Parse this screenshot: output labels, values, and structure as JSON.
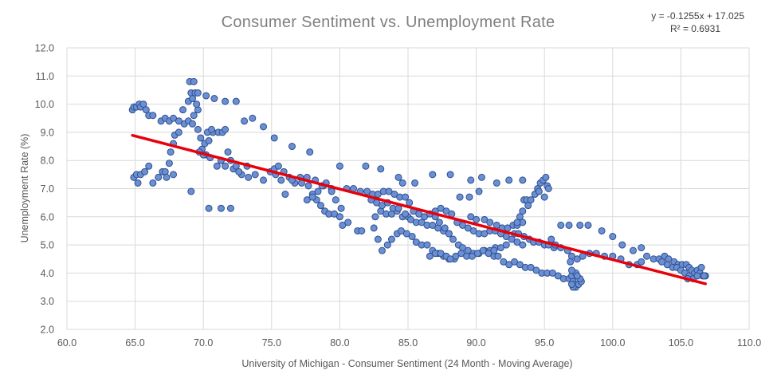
{
  "chart_data": {
    "type": "scatter",
    "title": "Consumer Sentiment vs. Unemployment Rate",
    "xlabel": "University of Michigan - Consumer Sentiment (24 Month - Moving Average)",
    "ylabel": "Unemployment Rate (%)",
    "xlim": [
      60,
      110
    ],
    "ylim": [
      2,
      12
    ],
    "x_ticks": [
      "60.0",
      "65.0",
      "70.0",
      "75.0",
      "80.0",
      "85.0",
      "90.0",
      "95.0",
      "100.0",
      "105.0",
      "110.0"
    ],
    "y_ticks": [
      "2.0",
      "3.0",
      "4.0",
      "5.0",
      "6.0",
      "7.0",
      "8.0",
      "9.0",
      "10.0",
      "11.0",
      "12.0"
    ],
    "grid": true,
    "legend": "none",
    "trendline": {
      "equation": "y = -0.1255x + 17.025",
      "r_squared": "R² = 0.6931",
      "slope": -0.1255,
      "intercept": 17.025,
      "x_range": [
        64.8,
        106.8
      ],
      "color": "#e8000b"
    },
    "marker_color": "#6a8fd3",
    "marker_edge_color": "#2f4f8f",
    "points": [
      [
        64.8,
        9.8
      ],
      [
        64.9,
        9.9
      ],
      [
        65.1,
        9.9
      ],
      [
        65.3,
        10.0
      ],
      [
        65.4,
        9.9
      ],
      [
        65.6,
        10.0
      ],
      [
        65.8,
        9.8
      ],
      [
        66.0,
        9.6
      ],
      [
        66.3,
        9.6
      ],
      [
        64.9,
        7.4
      ],
      [
        65.2,
        7.2
      ],
      [
        65.1,
        7.5
      ],
      [
        65.4,
        7.5
      ],
      [
        65.7,
        7.6
      ],
      [
        66.0,
        7.8
      ],
      [
        66.3,
        7.2
      ],
      [
        66.7,
        7.4
      ],
      [
        67.0,
        7.6
      ],
      [
        67.2,
        7.6
      ],
      [
        67.8,
        7.5
      ],
      [
        66.9,
        9.4
      ],
      [
        67.2,
        9.5
      ],
      [
        67.5,
        9.4
      ],
      [
        67.8,
        9.5
      ],
      [
        68.2,
        9.4
      ],
      [
        68.6,
        9.3
      ],
      [
        68.9,
        9.4
      ],
      [
        69.2,
        9.3
      ],
      [
        69.3,
        9.6
      ],
      [
        69.6,
        9.8
      ],
      [
        67.6,
        8.3
      ],
      [
        67.8,
        8.6
      ],
      [
        67.9,
        8.9
      ],
      [
        68.2,
        9.0
      ],
      [
        67.5,
        7.9
      ],
      [
        67.3,
        7.4
      ],
      [
        69.1,
        6.9
      ],
      [
        68.5,
        9.8
      ],
      [
        68.9,
        10.1
      ],
      [
        69.0,
        10.8
      ],
      [
        69.3,
        10.8
      ],
      [
        69.1,
        10.4
      ],
      [
        69.4,
        10.4
      ],
      [
        69.6,
        10.4
      ],
      [
        69.5,
        10.0
      ],
      [
        69.2,
        10.2
      ],
      [
        70.2,
        10.3
      ],
      [
        70.8,
        10.2
      ],
      [
        71.6,
        10.1
      ],
      [
        72.4,
        10.1
      ],
      [
        69.6,
        9.1
      ],
      [
        69.8,
        8.8
      ],
      [
        70.1,
        8.6
      ],
      [
        70.4,
        8.7
      ],
      [
        69.9,
        8.4
      ],
      [
        70.2,
        8.2
      ],
      [
        70.5,
        8.1
      ],
      [
        71.0,
        7.8
      ],
      [
        71.6,
        7.8
      ],
      [
        72.2,
        7.7
      ],
      [
        72.8,
        7.5
      ],
      [
        73.3,
        7.4
      ],
      [
        70.3,
        9.0
      ],
      [
        70.7,
        9.0
      ],
      [
        71.1,
        9.0
      ],
      [
        71.4,
        9.0
      ],
      [
        71.6,
        9.1
      ],
      [
        70.6,
        9.1
      ],
      [
        69.7,
        8.3
      ],
      [
        70.0,
        8.2
      ],
      [
        71.3,
        8.0
      ],
      [
        71.8,
        8.3
      ],
      [
        72.0,
        8.0
      ],
      [
        72.4,
        7.8
      ],
      [
        70.4,
        6.3
      ],
      [
        71.3,
        6.3
      ],
      [
        72.0,
        6.3
      ],
      [
        73.0,
        9.4
      ],
      [
        73.6,
        9.5
      ],
      [
        74.4,
        9.2
      ],
      [
        75.2,
        8.8
      ],
      [
        76.5,
        8.5
      ],
      [
        77.8,
        8.3
      ],
      [
        72.6,
        7.6
      ],
      [
        73.2,
        7.8
      ],
      [
        73.8,
        7.5
      ],
      [
        74.4,
        7.3
      ],
      [
        74.9,
        7.6
      ],
      [
        75.2,
        7.7
      ],
      [
        75.5,
        7.8
      ],
      [
        75.9,
        7.6
      ],
      [
        76.3,
        7.4
      ],
      [
        76.7,
        7.2
      ],
      [
        77.1,
        7.4
      ],
      [
        77.6,
        7.4
      ],
      [
        78.2,
        7.3
      ],
      [
        78.8,
        7.1
      ],
      [
        79.4,
        7.0
      ],
      [
        75.3,
        7.5
      ],
      [
        75.7,
        7.3
      ],
      [
        76.0,
        6.8
      ],
      [
        76.5,
        7.3
      ],
      [
        77.2,
        7.2
      ],
      [
        77.7,
        7.1
      ],
      [
        78.0,
        6.8
      ],
      [
        78.3,
        6.6
      ],
      [
        78.6,
        6.4
      ],
      [
        78.9,
        6.2
      ],
      [
        79.2,
        6.1
      ],
      [
        79.6,
        6.1
      ],
      [
        80.0,
        6.0
      ],
      [
        80.2,
        5.7
      ],
      [
        80.6,
        5.8
      ],
      [
        81.3,
        5.5
      ],
      [
        81.6,
        5.5
      ],
      [
        77.6,
        6.6
      ],
      [
        78.0,
        6.7
      ],
      [
        78.4,
        6.9
      ],
      [
        78.7,
        7.1
      ],
      [
        79.0,
        7.2
      ],
      [
        79.4,
        6.9
      ],
      [
        79.7,
        6.6
      ],
      [
        80.1,
        6.3
      ],
      [
        80.0,
        7.8
      ],
      [
        81.9,
        7.8
      ],
      [
        83.0,
        7.7
      ],
      [
        84.3,
        7.4
      ],
      [
        84.6,
        7.2
      ],
      [
        85.5,
        7.2
      ],
      [
        80.5,
        7.0
      ],
      [
        81.0,
        7.0
      ],
      [
        81.5,
        6.9
      ],
      [
        82.0,
        6.9
      ],
      [
        82.4,
        6.8
      ],
      [
        82.8,
        6.8
      ],
      [
        83.2,
        6.9
      ],
      [
        83.6,
        6.9
      ],
      [
        84.0,
        6.8
      ],
      [
        84.4,
        6.7
      ],
      [
        84.8,
        6.7
      ],
      [
        85.1,
        6.5
      ],
      [
        82.6,
        6.0
      ],
      [
        83.0,
        6.2
      ],
      [
        83.4,
        6.1
      ],
      [
        83.8,
        6.1
      ],
      [
        84.2,
        6.2
      ],
      [
        84.6,
        6.0
      ],
      [
        85.0,
        6.0
      ],
      [
        85.4,
        6.2
      ],
      [
        85.8,
        6.1
      ],
      [
        86.2,
        6.0
      ],
      [
        86.6,
        6.1
      ],
      [
        87.0,
        6.2
      ],
      [
        87.4,
        6.3
      ],
      [
        87.8,
        6.2
      ],
      [
        88.2,
        6.1
      ],
      [
        82.5,
        5.6
      ],
      [
        82.8,
        5.2
      ],
      [
        83.1,
        4.8
      ],
      [
        83.5,
        5.0
      ],
      [
        83.8,
        5.2
      ],
      [
        84.2,
        5.4
      ],
      [
        84.5,
        5.5
      ],
      [
        84.9,
        5.4
      ],
      [
        85.3,
        5.3
      ],
      [
        85.6,
        5.1
      ],
      [
        86.0,
        5.0
      ],
      [
        86.4,
        5.0
      ],
      [
        86.8,
        4.8
      ],
      [
        87.2,
        4.7
      ],
      [
        87.6,
        4.6
      ],
      [
        88.0,
        4.5
      ],
      [
        88.4,
        4.5
      ],
      [
        82.3,
        6.6
      ],
      [
        82.7,
        6.5
      ],
      [
        83.1,
        6.4
      ],
      [
        83.5,
        6.5
      ],
      [
        83.9,
        6.3
      ],
      [
        84.3,
        6.3
      ],
      [
        84.8,
        6.1
      ],
      [
        85.2,
        5.9
      ],
      [
        85.6,
        5.8
      ],
      [
        86.0,
        5.8
      ],
      [
        86.4,
        5.7
      ],
      [
        86.8,
        5.7
      ],
      [
        87.2,
        5.6
      ],
      [
        87.6,
        5.5
      ],
      [
        88.0,
        5.4
      ],
      [
        86.8,
        7.5
      ],
      [
        88.1,
        7.5
      ],
      [
        89.6,
        7.3
      ],
      [
        90.4,
        7.4
      ],
      [
        91.5,
        7.2
      ],
      [
        92.4,
        7.3
      ],
      [
        93.4,
        7.3
      ],
      [
        87.0,
        6.0
      ],
      [
        87.3,
        5.8
      ],
      [
        87.7,
        5.6
      ],
      [
        88.0,
        5.4
      ],
      [
        88.3,
        5.2
      ],
      [
        88.7,
        5.0
      ],
      [
        89.0,
        4.9
      ],
      [
        89.4,
        4.8
      ],
      [
        89.8,
        4.7
      ],
      [
        90.2,
        4.7
      ],
      [
        90.6,
        4.8
      ],
      [
        91.0,
        4.8
      ],
      [
        91.4,
        4.9
      ],
      [
        91.8,
        4.9
      ],
      [
        92.2,
        5.0
      ],
      [
        86.6,
        4.6
      ],
      [
        87.0,
        4.7
      ],
      [
        87.4,
        4.7
      ],
      [
        87.8,
        4.6
      ],
      [
        88.1,
        4.5
      ],
      [
        88.5,
        4.6
      ],
      [
        88.9,
        4.7
      ],
      [
        89.3,
        4.6
      ],
      [
        89.7,
        4.6
      ],
      [
        90.1,
        4.7
      ],
      [
        90.5,
        4.8
      ],
      [
        90.9,
        4.7
      ],
      [
        91.3,
        4.6
      ],
      [
        88.6,
        5.8
      ],
      [
        89.0,
        5.7
      ],
      [
        89.4,
        5.6
      ],
      [
        89.8,
        5.5
      ],
      [
        90.2,
        5.4
      ],
      [
        90.6,
        5.4
      ],
      [
        91.0,
        5.5
      ],
      [
        91.4,
        5.5
      ],
      [
        91.8,
        5.4
      ],
      [
        92.2,
        5.3
      ],
      [
        92.6,
        5.2
      ],
      [
        93.0,
        5.1
      ],
      [
        93.4,
        5.0
      ],
      [
        88.8,
        6.7
      ],
      [
        89.5,
        6.7
      ],
      [
        90.2,
        6.9
      ],
      [
        89.6,
        6.0
      ],
      [
        90.0,
        5.9
      ],
      [
        90.6,
        5.9
      ],
      [
        91.0,
        5.8
      ],
      [
        91.5,
        5.7
      ],
      [
        91.9,
        5.6
      ],
      [
        92.3,
        5.6
      ],
      [
        92.7,
        5.7
      ],
      [
        93.0,
        5.7
      ],
      [
        93.4,
        5.8
      ],
      [
        92.8,
        5.4
      ],
      [
        93.1,
        5.4
      ],
      [
        93.5,
        5.3
      ],
      [
        93.9,
        5.2
      ],
      [
        94.2,
        5.1
      ],
      [
        94.6,
        5.1
      ],
      [
        95.0,
        5.0
      ],
      [
        95.3,
        5.0
      ],
      [
        95.7,
        4.9
      ],
      [
        91.3,
        4.8
      ],
      [
        91.6,
        4.6
      ],
      [
        92.0,
        4.4
      ],
      [
        92.4,
        4.3
      ],
      [
        92.8,
        4.4
      ],
      [
        93.2,
        4.3
      ],
      [
        93.6,
        4.2
      ],
      [
        94.0,
        4.2
      ],
      [
        94.4,
        4.1
      ],
      [
        94.8,
        4.0
      ],
      [
        95.2,
        4.0
      ],
      [
        95.6,
        4.0
      ],
      [
        96.0,
        3.9
      ],
      [
        96.4,
        3.8
      ],
      [
        96.8,
        3.8
      ],
      [
        93.5,
        6.6
      ],
      [
        93.7,
        6.6
      ],
      [
        94.0,
        6.6
      ],
      [
        94.3,
        6.8
      ],
      [
        94.5,
        7.0
      ],
      [
        94.7,
        7.2
      ],
      [
        94.9,
        7.3
      ],
      [
        95.1,
        7.4
      ],
      [
        95.2,
        7.1
      ],
      [
        95.3,
        7.0
      ],
      [
        95.0,
        6.7
      ],
      [
        94.6,
        6.9
      ],
      [
        93.8,
        6.4
      ],
      [
        93.4,
        6.2
      ],
      [
        93.2,
        6.0
      ],
      [
        93.0,
        5.8
      ],
      [
        95.5,
        5.2
      ],
      [
        95.8,
        5.0
      ],
      [
        96.2,
        4.9
      ],
      [
        96.7,
        4.8
      ],
      [
        97.0,
        4.6
      ],
      [
        97.4,
        4.5
      ],
      [
        97.8,
        4.6
      ],
      [
        96.2,
        5.7
      ],
      [
        96.8,
        5.7
      ],
      [
        97.6,
        5.7
      ],
      [
        98.2,
        5.7
      ],
      [
        99.2,
        5.5
      ],
      [
        100.0,
        5.3
      ],
      [
        100.7,
        5.0
      ],
      [
        101.5,
        4.8
      ],
      [
        102.1,
        4.9
      ],
      [
        96.9,
        4.4
      ],
      [
        97.0,
        3.9
      ],
      [
        97.1,
        3.7
      ],
      [
        97.2,
        3.6
      ],
      [
        97.3,
        3.5
      ],
      [
        97.5,
        3.6
      ],
      [
        97.7,
        3.7
      ],
      [
        97.3,
        4.0
      ],
      [
        97.0,
        4.1
      ],
      [
        97.6,
        3.8
      ],
      [
        97.4,
        3.9
      ],
      [
        97.1,
        3.5
      ],
      [
        97.0,
        3.6
      ],
      [
        98.3,
        4.7
      ],
      [
        98.8,
        4.7
      ],
      [
        99.4,
        4.6
      ],
      [
        100.0,
        4.6
      ],
      [
        100.6,
        4.5
      ],
      [
        101.2,
        4.3
      ],
      [
        101.8,
        4.3
      ],
      [
        102.1,
        4.4
      ],
      [
        102.5,
        4.6
      ],
      [
        103.0,
        4.5
      ],
      [
        103.4,
        4.5
      ],
      [
        103.8,
        4.6
      ],
      [
        104.1,
        4.5
      ],
      [
        104.5,
        4.4
      ],
      [
        104.8,
        4.3
      ],
      [
        105.1,
        4.3
      ],
      [
        105.4,
        4.3
      ],
      [
        105.6,
        4.2
      ],
      [
        105.8,
        4.1
      ],
      [
        106.0,
        4.0
      ],
      [
        106.2,
        4.1
      ],
      [
        106.4,
        4.0
      ],
      [
        106.6,
        3.9
      ],
      [
        106.8,
        3.9
      ],
      [
        103.6,
        4.4
      ],
      [
        104.0,
        4.3
      ],
      [
        104.4,
        4.2
      ],
      [
        104.7,
        4.2
      ],
      [
        105.0,
        4.1
      ],
      [
        105.3,
        4.0
      ],
      [
        105.6,
        3.9
      ],
      [
        105.9,
        3.8
      ],
      [
        106.2,
        3.9
      ],
      [
        106.5,
        4.2
      ],
      [
        106.7,
        3.9
      ],
      [
        105.5,
        3.8
      ]
    ]
  }
}
